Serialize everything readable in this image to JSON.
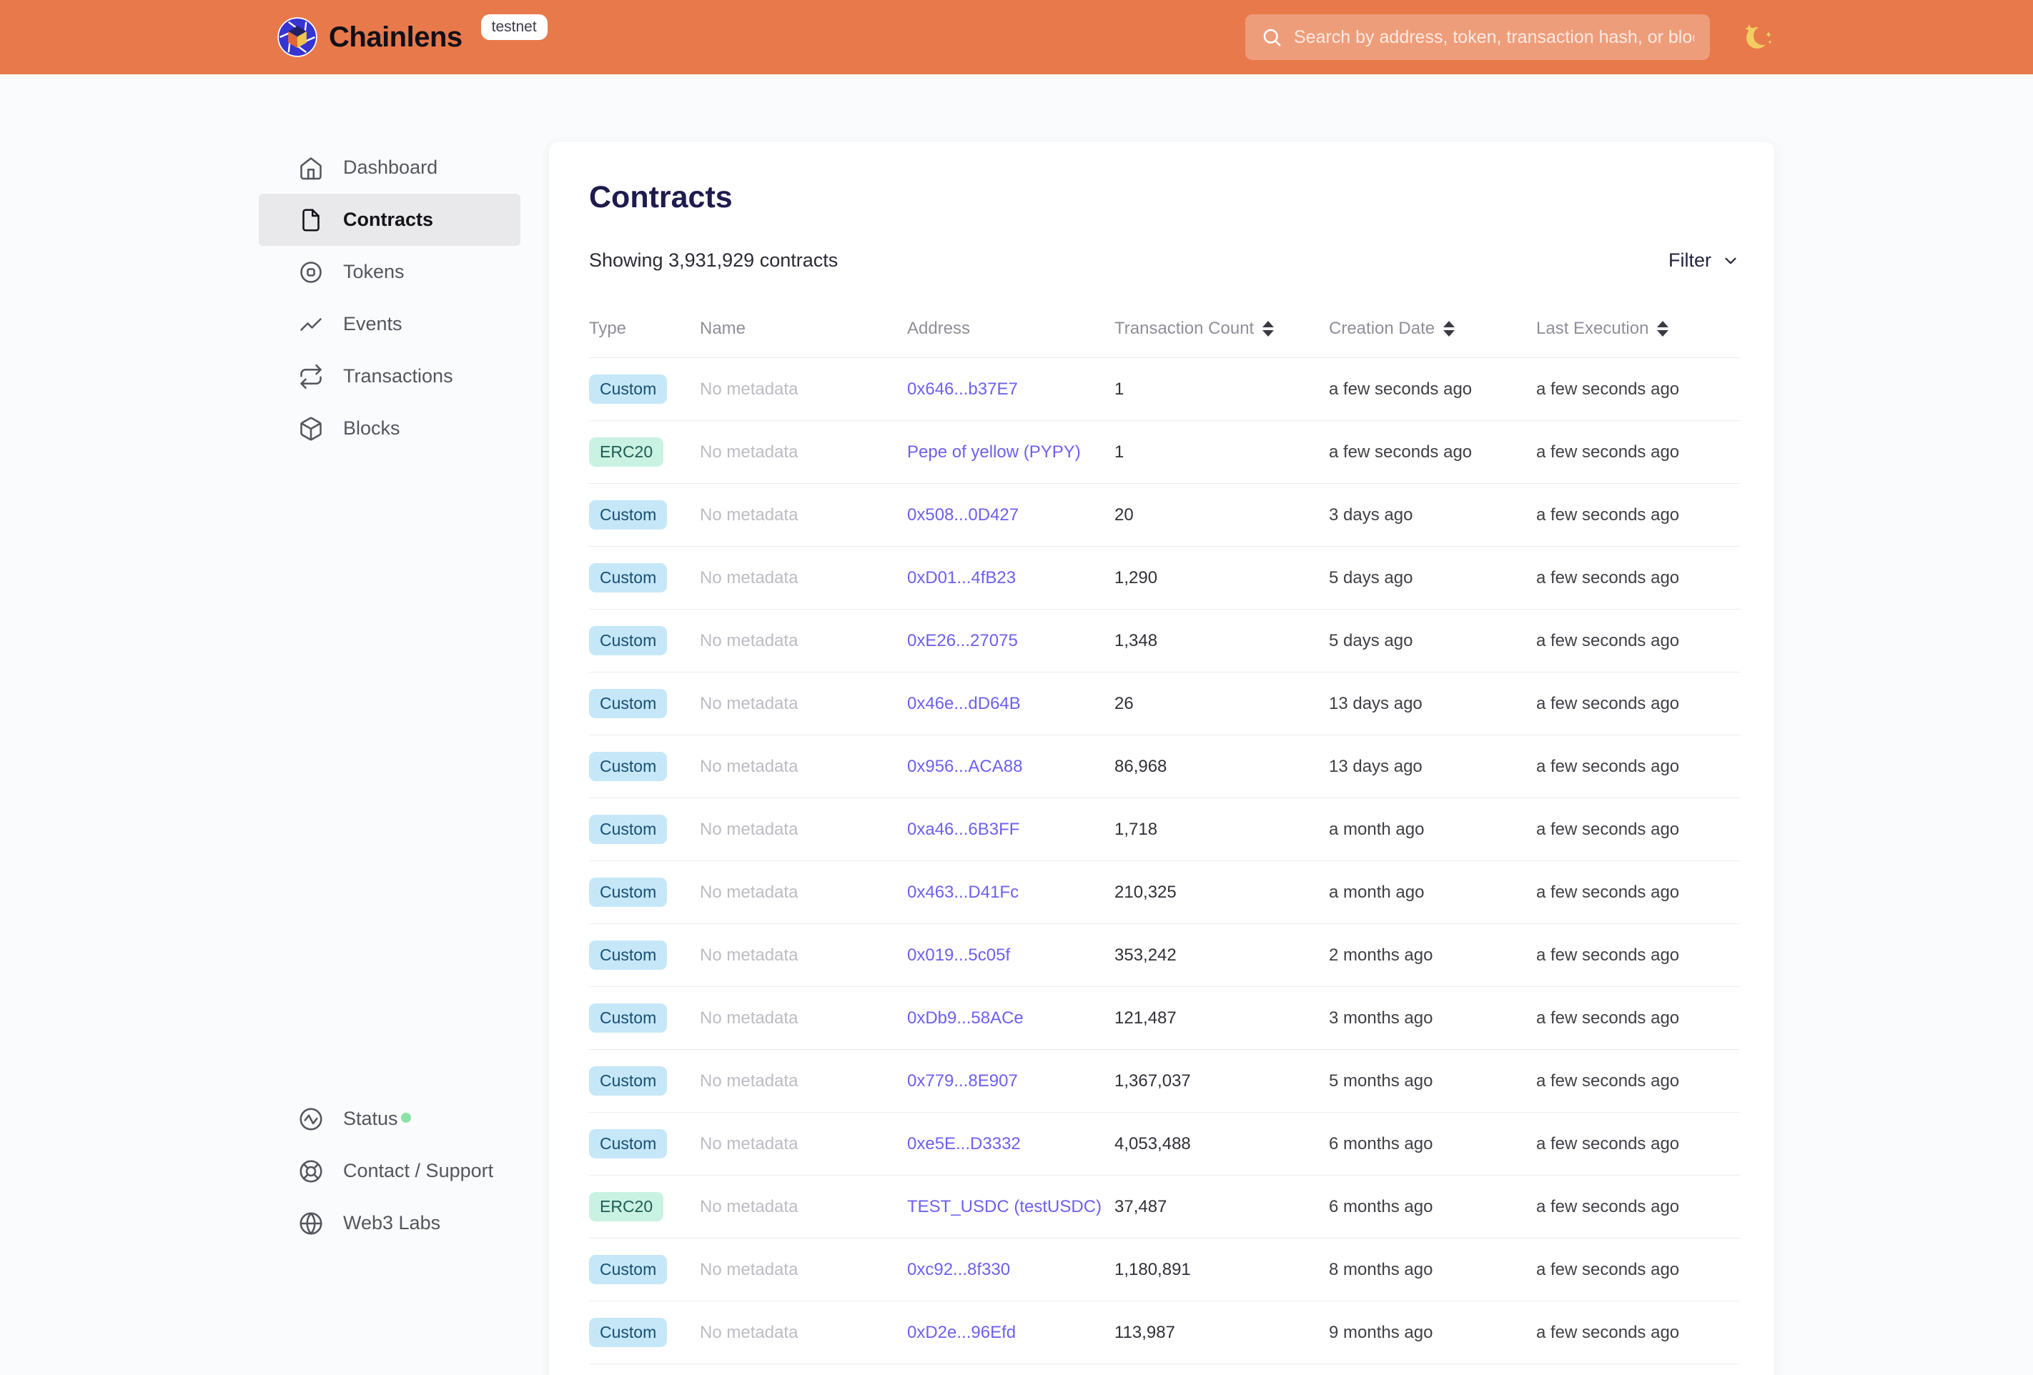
{
  "header": {
    "brand": "Chainlens",
    "env_badge": "testnet",
    "search_placeholder": "Search by address, token, transaction hash, or block number"
  },
  "sidebar": {
    "items": [
      {
        "label": "Dashboard",
        "icon": "home-icon",
        "active": false
      },
      {
        "label": "Contracts",
        "icon": "document-icon",
        "active": true
      },
      {
        "label": "Tokens",
        "icon": "token-icon",
        "active": false
      },
      {
        "label": "Events",
        "icon": "activity-icon",
        "active": false
      },
      {
        "label": "Transactions",
        "icon": "repeat-icon",
        "active": false
      },
      {
        "label": "Blocks",
        "icon": "cube-icon",
        "active": false
      }
    ],
    "bottom_items": [
      {
        "label": "Status",
        "icon": "status-icon",
        "status_dot": true,
        "status_dot_color": "#8BE3A9"
      },
      {
        "label": "Contact / Support",
        "icon": "lifebuoy-icon",
        "status_dot": false
      },
      {
        "label": "Web3 Labs",
        "icon": "globe-icon",
        "status_dot": false
      }
    ]
  },
  "main": {
    "title": "Contracts",
    "summary": "Showing 3,931,929 contracts",
    "filter_label": "Filter",
    "table": {
      "columns": [
        {
          "label": "Type",
          "sortable": false
        },
        {
          "label": "Name",
          "sortable": false
        },
        {
          "label": "Address",
          "sortable": false
        },
        {
          "label": "Transaction Count",
          "sortable": true
        },
        {
          "label": "Creation Date",
          "sortable": true
        },
        {
          "label": "Last Execution",
          "sortable": true
        }
      ],
      "rows": [
        {
          "type": "Custom",
          "name": "No metadata",
          "address": "0x646...b37E7",
          "tx_count": "1",
          "creation": "a few seconds ago",
          "last_exec": "a few seconds ago"
        },
        {
          "type": "ERC20",
          "name": "No metadata",
          "address": "Pepe of yellow (PYPY)",
          "tx_count": "1",
          "creation": "a few seconds ago",
          "last_exec": "a few seconds ago"
        },
        {
          "type": "Custom",
          "name": "No metadata",
          "address": "0x508...0D427",
          "tx_count": "20",
          "creation": "3 days ago",
          "last_exec": "a few seconds ago"
        },
        {
          "type": "Custom",
          "name": "No metadata",
          "address": "0xD01...4fB23",
          "tx_count": "1,290",
          "creation": "5 days ago",
          "last_exec": "a few seconds ago"
        },
        {
          "type": "Custom",
          "name": "No metadata",
          "address": "0xE26...27075",
          "tx_count": "1,348",
          "creation": "5 days ago",
          "last_exec": "a few seconds ago"
        },
        {
          "type": "Custom",
          "name": "No metadata",
          "address": "0x46e...dD64B",
          "tx_count": "26",
          "creation": "13 days ago",
          "last_exec": "a few seconds ago"
        },
        {
          "type": "Custom",
          "name": "No metadata",
          "address": "0x956...ACA88",
          "tx_count": "86,968",
          "creation": "13 days ago",
          "last_exec": "a few seconds ago"
        },
        {
          "type": "Custom",
          "name": "No metadata",
          "address": "0xa46...6B3FF",
          "tx_count": "1,718",
          "creation": "a month ago",
          "last_exec": "a few seconds ago"
        },
        {
          "type": "Custom",
          "name": "No metadata",
          "address": "0x463...D41Fc",
          "tx_count": "210,325",
          "creation": "a month ago",
          "last_exec": "a few seconds ago"
        },
        {
          "type": "Custom",
          "name": "No metadata",
          "address": "0x019...5c05f",
          "tx_count": "353,242",
          "creation": "2 months ago",
          "last_exec": "a few seconds ago"
        },
        {
          "type": "Custom",
          "name": "No metadata",
          "address": "0xDb9...58ACe",
          "tx_count": "121,487",
          "creation": "3 months ago",
          "last_exec": "a few seconds ago"
        },
        {
          "type": "Custom",
          "name": "No metadata",
          "address": "0x779...8E907",
          "tx_count": "1,367,037",
          "creation": "5 months ago",
          "last_exec": "a few seconds ago"
        },
        {
          "type": "Custom",
          "name": "No metadata",
          "address": "0xe5E...D3332",
          "tx_count": "4,053,488",
          "creation": "6 months ago",
          "last_exec": "a few seconds ago"
        },
        {
          "type": "ERC20",
          "name": "No metadata",
          "address": "TEST_USDC (testUSDC)",
          "tx_count": "37,487",
          "creation": "6 months ago",
          "last_exec": "a few seconds ago"
        },
        {
          "type": "Custom",
          "name": "No metadata",
          "address": "0xc92...8f330",
          "tx_count": "1,180,891",
          "creation": "8 months ago",
          "last_exec": "a few seconds ago"
        },
        {
          "type": "Custom",
          "name": "No metadata",
          "address": "0xD2e...96Efd",
          "tx_count": "113,987",
          "creation": "9 months ago",
          "last_exec": "a few seconds ago"
        }
      ]
    }
  },
  "colors": {
    "header_bg": "#E8794B",
    "page_bg": "#fafbfc",
    "card_bg": "#ffffff",
    "title": "#1E1B4E",
    "link": "#6D60F0",
    "badge_custom_bg": "#C6E7F8",
    "badge_custom_text": "#174E73",
    "badge_erc20_bg": "#C9F2E3",
    "badge_erc20_text": "#1E5B51",
    "muted_text": "#bcbcc4",
    "status_dot": "#8BE3A9"
  }
}
